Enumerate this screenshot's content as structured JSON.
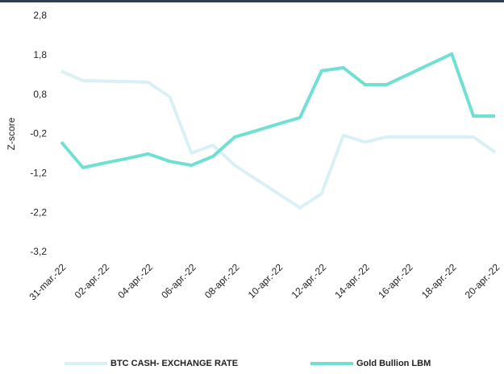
{
  "chart_data": {
    "type": "line",
    "y_label": "Z-score",
    "categories": [
      "31-mar.-22",
      null,
      "02-apr.-22",
      null,
      "04-apr.-22",
      null,
      "06-apr.-22",
      null,
      "08-apr.-22",
      null,
      "10-apr.-22",
      null,
      "12-apr.-22",
      null,
      "14-apr.-22",
      null,
      "16-apr.-22",
      null,
      "18-apr.-22",
      null,
      "20-apr.-22"
    ],
    "series": [
      {
        "name": "BTC CASH- EXCHANGE RATE",
        "color": "#d9f1f5",
        "values": [
          1.4,
          1.16,
          1.15,
          1.14,
          1.12,
          0.75,
          -0.68,
          -0.48,
          -0.99,
          -1.35,
          -1.71,
          -2.07,
          -1.71,
          -0.23,
          -0.4,
          -0.27,
          -0.27,
          -0.27,
          -0.27,
          -0.27,
          -0.66
        ]
      },
      {
        "name": "Gold Bullion LBM",
        "color": "#6fe0d3",
        "values": [
          -0.4,
          -1.05,
          -0.93,
          -0.82,
          -0.7,
          -0.89,
          -0.99,
          -0.76,
          -0.27,
          -0.11,
          0.06,
          0.22,
          1.41,
          1.49,
          1.06,
          1.06,
          1.32,
          1.58,
          1.84,
          0.26,
          0.26
        ]
      }
    ],
    "ylim": [
      -3.2,
      2.8
    ],
    "yticks": [
      {
        "value": 2.8,
        "label": "2,8"
      },
      {
        "value": 1.8,
        "label": "1,8"
      },
      {
        "value": 0.8,
        "label": "0,8"
      },
      {
        "value": -0.2,
        "label": "-0,2"
      },
      {
        "value": -1.2,
        "label": "-1,2"
      },
      {
        "value": -2.2,
        "label": "-2,2"
      },
      {
        "value": -3.2,
        "label": "-3,2"
      }
    ],
    "grid": false,
    "legend": "bottom"
  }
}
